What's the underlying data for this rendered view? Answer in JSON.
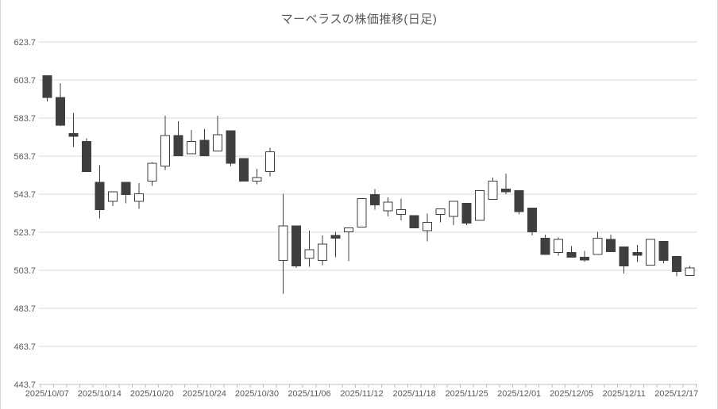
{
  "chart_data": {
    "type": "candlestick",
    "title": "マーベラスの株価推移(日足)",
    "legend": "none",
    "grid": "horizontal",
    "y_axis": {
      "min": 443.7,
      "max": 623.7,
      "step": 20,
      "tick_labels": [
        "623.7",
        "603.7",
        "583.7",
        "563.7",
        "543.7",
        "523.7",
        "503.7",
        "483.7",
        "463.7",
        "443.7"
      ]
    },
    "x_axis": {
      "label_every": 4,
      "tick_labels": [
        "2025/10/07",
        "2025/10/14",
        "2025/10/20",
        "2025/10/24",
        "2025/10/30",
        "2025/11/06",
        "2025/11/12",
        "2025/11/18",
        "2025/11/25",
        "2025/12/01",
        "2025/12/05",
        "2025/12/11",
        "2025/12/17"
      ]
    },
    "colors": {
      "up_fill": "#ffffff",
      "down_fill": "#3f3f3f",
      "stroke": "#3f3f3f",
      "wick": "#3f3f3f",
      "grid": "#d9d9d9",
      "axis": "#bfbfbf",
      "text": "#595959"
    },
    "candles": [
      {
        "date": "2025/10/07",
        "open": 606.0,
        "high": 606.0,
        "low": 592.5,
        "close": 594.5
      },
      {
        "date": "2025/10/08",
        "open": 594.5,
        "high": 602.0,
        "low": 579.5,
        "close": 580.0
      },
      {
        "date": "2025/10/09",
        "open": 575.5,
        "high": 586.5,
        "low": 568.5,
        "close": 574.5
      },
      {
        "date": "2025/10/10",
        "open": 571.5,
        "high": 573.0,
        "low": 555.5,
        "close": 555.5
      },
      {
        "date": "2025/10/14",
        "open": 550.0,
        "high": 559.0,
        "low": 531.0,
        "close": 535.5
      },
      {
        "date": "2025/10/15",
        "open": 540.0,
        "high": 545.0,
        "low": 537.5,
        "close": 545.0
      },
      {
        "date": "2025/10/16",
        "open": 550.0,
        "high": 550.0,
        "low": 539.0,
        "close": 543.5
      },
      {
        "date": "2025/10/17",
        "open": 540.0,
        "high": 549.5,
        "low": 536.0,
        "close": 544.0
      },
      {
        "date": "2025/10/20",
        "open": 550.5,
        "high": 560.5,
        "low": 548.0,
        "close": 560.0
      },
      {
        "date": "2025/10/21",
        "open": 558.5,
        "high": 585.0,
        "low": 556.5,
        "close": 574.5
      },
      {
        "date": "2025/10/22",
        "open": 574.5,
        "high": 582.0,
        "low": 564.0,
        "close": 564.0
      },
      {
        "date": "2025/10/23",
        "open": 565.0,
        "high": 577.5,
        "low": 565.0,
        "close": 571.5
      },
      {
        "date": "2025/10/24",
        "open": 572.0,
        "high": 578.0,
        "low": 564.0,
        "close": 564.0
      },
      {
        "date": "2025/10/27",
        "open": 566.5,
        "high": 585.0,
        "low": 566.5,
        "close": 575.0
      },
      {
        "date": "2025/10/28",
        "open": 577.0,
        "high": 577.0,
        "low": 558.5,
        "close": 560.0
      },
      {
        "date": "2025/10/29",
        "open": 562.5,
        "high": 562.5,
        "low": 550.5,
        "close": 550.5
      },
      {
        "date": "2025/10/30",
        "open": 550.5,
        "high": 557.0,
        "low": 549.0,
        "close": 552.5
      },
      {
        "date": "2025/10/31",
        "open": 555.5,
        "high": 568.0,
        "low": 553.0,
        "close": 566.0
      },
      {
        "date": "2025/11/04",
        "open": 509.0,
        "high": 544.0,
        "low": 491.5,
        "close": 527.0
      },
      {
        "date": "2025/11/05",
        "open": 527.0,
        "high": 527.0,
        "low": 505.0,
        "close": 506.0
      },
      {
        "date": "2025/11/06",
        "open": 510.0,
        "high": 524.5,
        "low": 505.5,
        "close": 514.5
      },
      {
        "date": "2025/11/07",
        "open": 509.0,
        "high": 522.0,
        "low": 506.5,
        "close": 517.5
      },
      {
        "date": "2025/11/10",
        "open": 522.0,
        "high": 524.0,
        "low": 510.5,
        "close": 521.0
      },
      {
        "date": "2025/11/11",
        "open": 524.0,
        "high": 526.0,
        "low": 508.5,
        "close": 526.0
      },
      {
        "date": "2025/11/12",
        "open": 526.5,
        "high": 541.5,
        "low": 526.5,
        "close": 541.5
      },
      {
        "date": "2025/11/13",
        "open": 543.5,
        "high": 546.5,
        "low": 535.5,
        "close": 538.0
      },
      {
        "date": "2025/11/14",
        "open": 535.0,
        "high": 542.0,
        "low": 532.0,
        "close": 539.5
      },
      {
        "date": "2025/11/17",
        "open": 533.0,
        "high": 541.5,
        "low": 530.0,
        "close": 535.5
      },
      {
        "date": "2025/11/18",
        "open": 532.5,
        "high": 532.5,
        "low": 526.0,
        "close": 526.0
      },
      {
        "date": "2025/11/19",
        "open": 524.5,
        "high": 533.5,
        "low": 519.0,
        "close": 529.0
      },
      {
        "date": "2025/11/20",
        "open": 533.0,
        "high": 536.0,
        "low": 529.0,
        "close": 536.0
      },
      {
        "date": "2025/11/21",
        "open": 532.0,
        "high": 540.0,
        "low": 527.5,
        "close": 540.0
      },
      {
        "date": "2025/11/25",
        "open": 539.0,
        "high": 539.0,
        "low": 527.5,
        "close": 528.5
      },
      {
        "date": "2025/11/26",
        "open": 530.0,
        "high": 545.5,
        "low": 530.0,
        "close": 545.5
      },
      {
        "date": "2025/11/27",
        "open": 541.0,
        "high": 552.5,
        "low": 541.0,
        "close": 550.5
      },
      {
        "date": "2025/11/28",
        "open": 546.5,
        "high": 554.5,
        "low": 543.7,
        "close": 545.5
      },
      {
        "date": "2025/12/01",
        "open": 545.5,
        "high": 545.5,
        "low": 533.0,
        "close": 534.5
      },
      {
        "date": "2025/12/02",
        "open": 536.5,
        "high": 536.5,
        "low": 522.0,
        "close": 524.0
      },
      {
        "date": "2025/12/03",
        "open": 520.5,
        "high": 522.5,
        "low": 512.0,
        "close": 512.0
      },
      {
        "date": "2025/12/04",
        "open": 513.0,
        "high": 521.0,
        "low": 511.5,
        "close": 520.0
      },
      {
        "date": "2025/12/05",
        "open": 513.0,
        "high": 516.5,
        "low": 510.5,
        "close": 510.5
      },
      {
        "date": "2025/12/08",
        "open": 510.5,
        "high": 514.0,
        "low": 508.0,
        "close": 509.5
      },
      {
        "date": "2025/12/09",
        "open": 512.0,
        "high": 524.0,
        "low": 512.0,
        "close": 520.5
      },
      {
        "date": "2025/12/10",
        "open": 520.0,
        "high": 522.5,
        "low": 513.5,
        "close": 513.5
      },
      {
        "date": "2025/12/11",
        "open": 516.0,
        "high": 516.0,
        "low": 502.0,
        "close": 506.0
      },
      {
        "date": "2025/12/12",
        "open": 513.0,
        "high": 517.0,
        "low": 508.0,
        "close": 512.0
      },
      {
        "date": "2025/12/15",
        "open": 506.5,
        "high": 520.0,
        "low": 506.5,
        "close": 520.0
      },
      {
        "date": "2025/12/16",
        "open": 519.0,
        "high": 519.0,
        "low": 507.5,
        "close": 509.0
      },
      {
        "date": "2025/12/17",
        "open": 511.0,
        "high": 511.0,
        "low": 500.5,
        "close": 503.0
      },
      {
        "date": "2025/12/18",
        "open": 501.0,
        "high": 506.0,
        "low": 501.0,
        "close": 505.0
      }
    ]
  }
}
